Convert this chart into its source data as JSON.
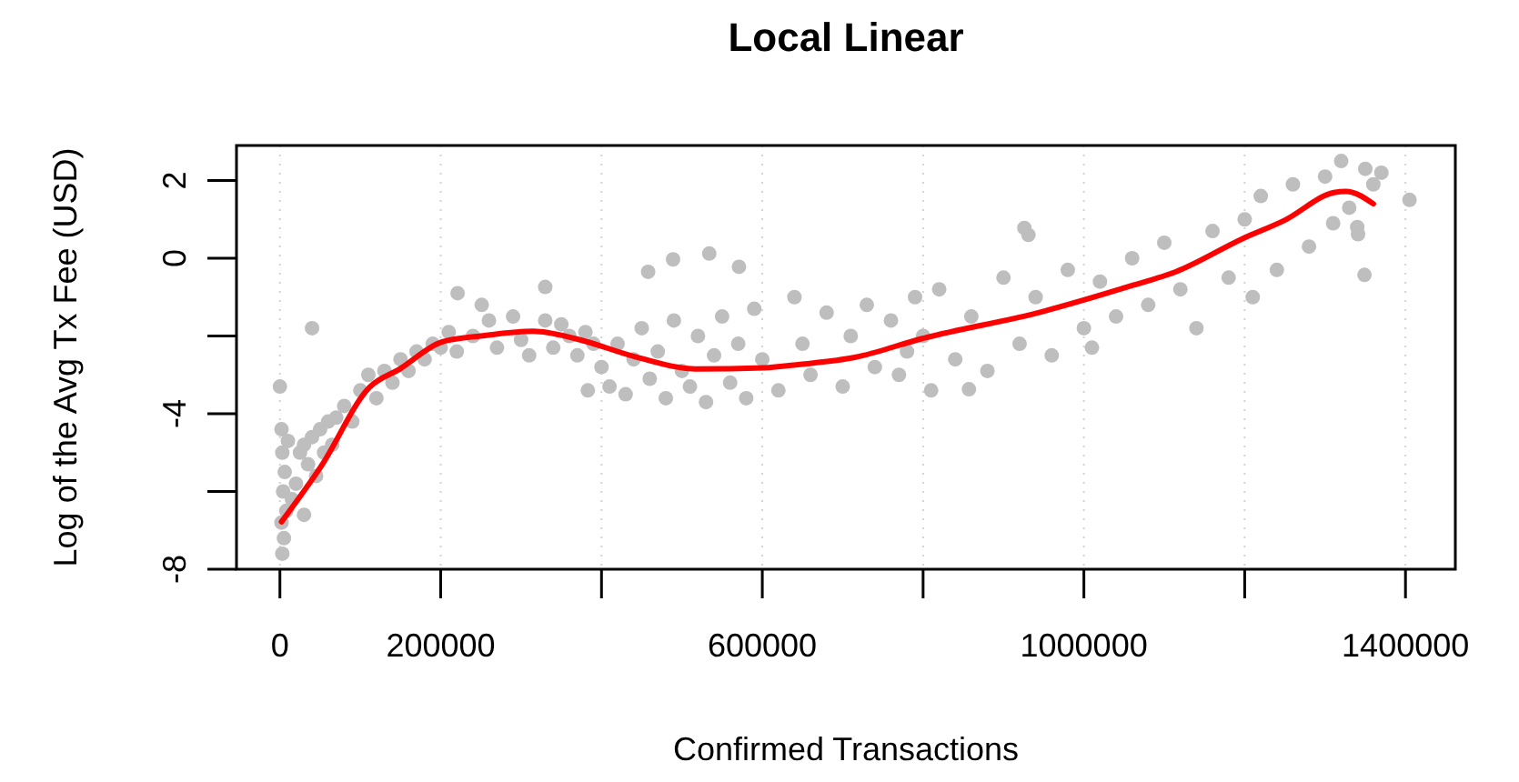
{
  "chart_data": {
    "type": "scatter",
    "title": "Local Linear",
    "xlabel": "Confirmed Transactions",
    "ylabel": "Log of the Avg Tx Fee (USD)",
    "xlim": [
      -54000,
      1462000
    ],
    "ylim": [
      -8,
      2.9
    ],
    "xticks": [
      0,
      200000,
      {
        "value": 400000,
        "label": null
      },
      600000,
      {
        "value": 800000,
        "label": null
      },
      1000000,
      {
        "value": 1200000,
        "label": null
      },
      1400000
    ],
    "yticks": [
      -8,
      {
        "value": -6,
        "label": null
      },
      -4,
      {
        "value": -2,
        "label": null
      },
      0,
      2
    ],
    "grid": "x",
    "marker": "circle",
    "series": [
      {
        "color": "#bebebe",
        "x": [
          3000,
          5000,
          2000,
          8000,
          4000,
          6000,
          3000,
          10000,
          2000,
          0,
          15000,
          20000,
          25000,
          30000,
          40000,
          50000,
          60000,
          35000,
          45000,
          55000,
          65000,
          30000,
          70000,
          40000,
          80000,
          90000,
          100000,
          110000,
          120000,
          130000,
          140000,
          150000,
          160000,
          170000,
          180000,
          190000,
          200000,
          210000,
          220000,
          221000,
          251000,
          330000,
          240000,
          260000,
          270000,
          290000,
          300000,
          310000,
          330000,
          340000,
          350000,
          360000,
          370000,
          380000,
          390000,
          534000,
          489000,
          458000,
          571000,
          383000,
          400000,
          410000,
          420000,
          430000,
          440000,
          450000,
          460000,
          470000,
          480000,
          490000,
          500000,
          510000,
          520000,
          530000,
          540000,
          550000,
          560000,
          570000,
          580000,
          590000,
          600000,
          620000,
          640000,
          650000,
          660000,
          680000,
          700000,
          710000,
          730000,
          740000,
          760000,
          770000,
          780000,
          790000,
          800000,
          810000,
          926000,
          931000,
          857000,
          820000,
          840000,
          860000,
          880000,
          900000,
          920000,
          940000,
          960000,
          980000,
          1000000,
          1010000,
          1020000,
          1040000,
          1060000,
          1080000,
          1100000,
          1120000,
          1140000,
          1160000,
          1180000,
          1200000,
          1210000,
          1220000,
          1240000,
          1260000,
          1280000,
          1300000,
          1310000,
          1320000,
          1330000,
          1350000,
          1360000,
          1370000,
          1340000,
          1349000,
          1341000,
          1405000
        ],
        "values": [
          -7.6,
          -7.2,
          -6.8,
          -6.5,
          -6.0,
          -5.5,
          -5.0,
          -4.7,
          -4.4,
          -3.3,
          -6.2,
          -5.8,
          -5.0,
          -4.8,
          -4.6,
          -4.4,
          -4.2,
          -5.3,
          -5.6,
          -5.0,
          -4.8,
          -6.6,
          -4.1,
          -1.8,
          -3.8,
          -4.2,
          -3.4,
          -3.0,
          -3.6,
          -2.9,
          -3.2,
          -2.6,
          -2.9,
          -2.4,
          -2.6,
          -2.2,
          -2.3,
          -1.9,
          -2.4,
          -0.9,
          -1.2,
          -0.74,
          -2.0,
          -1.6,
          -2.3,
          -1.5,
          -2.1,
          -2.5,
          -1.6,
          -2.3,
          -1.7,
          -2.0,
          -2.5,
          -1.9,
          -2.2,
          0.12,
          -0.03,
          -0.35,
          -0.22,
          -3.4,
          -2.8,
          -3.3,
          -2.2,
          -3.5,
          -2.6,
          -1.8,
          -3.1,
          -2.4,
          -3.6,
          -1.6,
          -2.9,
          -3.3,
          -2.0,
          -3.7,
          -2.5,
          -1.5,
          -3.2,
          -2.2,
          -3.6,
          -1.3,
          -2.6,
          -3.4,
          -1.0,
          -2.2,
          -3.0,
          -1.4,
          -3.3,
          -2.0,
          -1.2,
          -2.8,
          -1.6,
          -3.0,
          -2.4,
          -1.0,
          -2.0,
          -3.4,
          0.78,
          0.6,
          -3.37,
          -0.8,
          -2.6,
          -1.5,
          -2.9,
          -0.5,
          -2.2,
          -1.0,
          -2.5,
          -0.3,
          -1.8,
          -2.3,
          -0.6,
          -1.5,
          0.0,
          -1.2,
          0.4,
          -0.8,
          -1.8,
          0.7,
          -0.5,
          1.0,
          -1.0,
          1.6,
          -0.3,
          1.9,
          0.3,
          2.1,
          0.9,
          2.5,
          1.3,
          2.3,
          1.9,
          2.2,
          0.8,
          -0.43,
          0.62,
          1.5
        ]
      },
      {
        "type": "line",
        "color": "#ff0000",
        "marker": "none",
        "line_style": "solid",
        "x": [
          2000,
          51000,
          111500,
          149000,
          202000,
          255000,
          315000,
          368000,
          443000,
          519000,
          602000,
          647000,
          715000,
          798000,
          949000,
          1062000,
          1114000,
          1198000,
          1250000,
          1311000,
          1326000,
          1360000
        ],
        "values": [
          -6.78,
          -5.36,
          -3.32,
          -2.85,
          -2.15,
          -1.99,
          -1.88,
          -2.07,
          -2.54,
          -2.85,
          -2.82,
          -2.73,
          -2.55,
          -2.07,
          -1.37,
          -0.69,
          -0.35,
          0.51,
          0.98,
          1.69,
          1.72,
          1.4
        ]
      }
    ]
  }
}
